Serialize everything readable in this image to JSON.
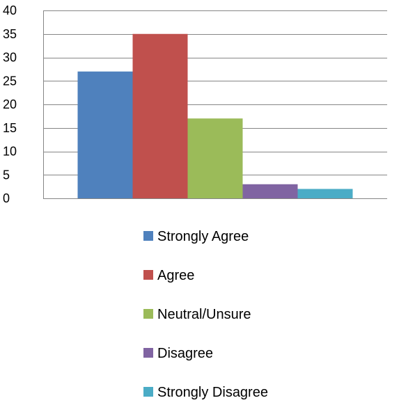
{
  "chart_data": {
    "type": "bar",
    "categories": [
      ""
    ],
    "series": [
      {
        "name": "Strongly Agree",
        "values": [
          27
        ],
        "color": "#4F81BD"
      },
      {
        "name": "Agree",
        "values": [
          35
        ],
        "color": "#C0504D"
      },
      {
        "name": "Neutral/Unsure",
        "values": [
          17
        ],
        "color": "#9BBB59"
      },
      {
        "name": "Disagree",
        "values": [
          3
        ],
        "color": "#8064A2"
      },
      {
        "name": "Strongly Disagree",
        "values": [
          2
        ],
        "color": "#4BACC6"
      }
    ],
    "yticks": [
      0,
      5,
      10,
      15,
      20,
      25,
      30,
      35,
      40
    ],
    "ylim": [
      0,
      40
    ],
    "grid": true,
    "legend_position": "bottom"
  }
}
